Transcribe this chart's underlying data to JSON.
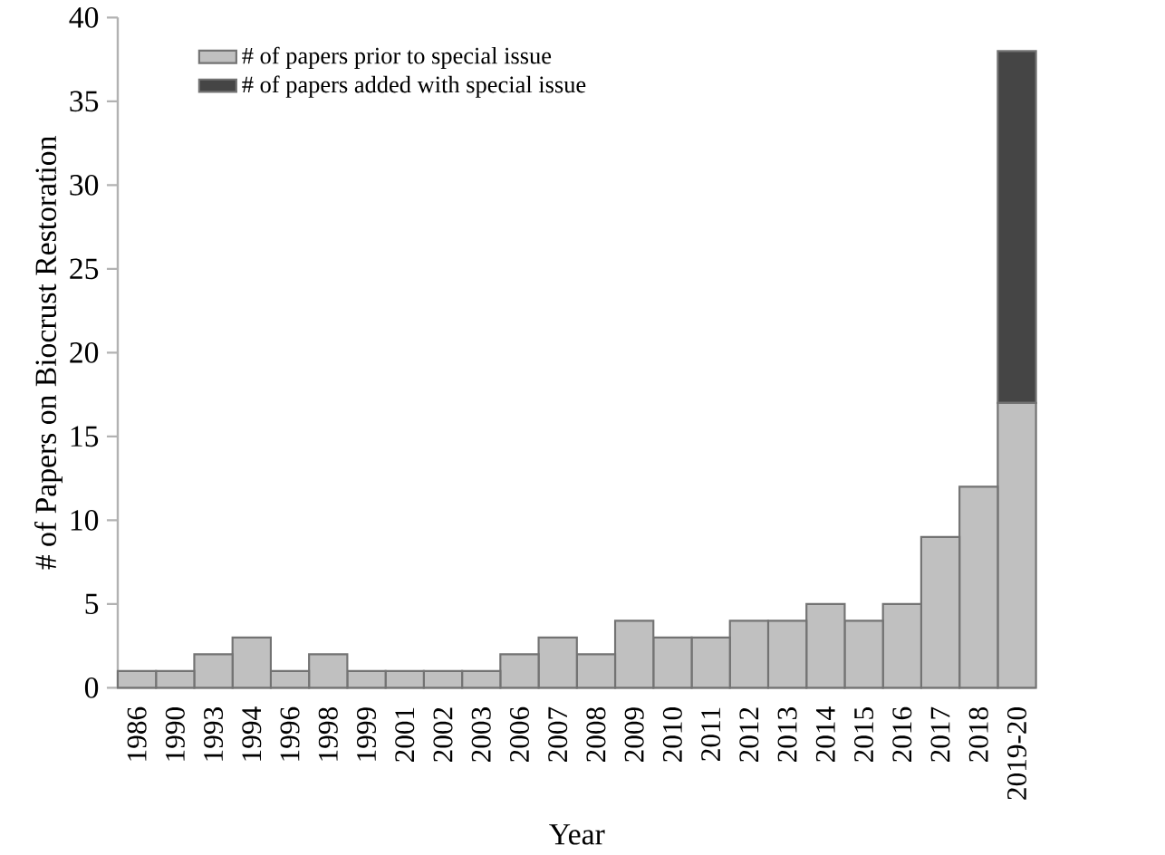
{
  "chart_data": {
    "type": "bar",
    "stacked": true,
    "xlabel": "Year",
    "ylabel": "# of Papers on Biocrust Restoration",
    "categories": [
      "1986",
      "1990",
      "1993",
      "1994",
      "1996",
      "1998",
      "1999",
      "2001",
      "2002",
      "2003",
      "2006",
      "2007",
      "2008",
      "2009",
      "2010",
      "2011",
      "2012",
      "2013",
      "2014",
      "2015",
      "2016",
      "2017",
      "2018",
      "2019-20"
    ],
    "series": [
      {
        "name": "# of papers prior to special issue",
        "color": "#c0c0c0",
        "values": [
          1,
          1,
          2,
          3,
          1,
          2,
          1,
          1,
          1,
          1,
          2,
          3,
          2,
          4,
          3,
          3,
          4,
          4,
          5,
          4,
          5,
          9,
          12,
          17
        ]
      },
      {
        "name": "# of papers added with special issue",
        "color": "#454545",
        "values": [
          null,
          null,
          null,
          null,
          null,
          null,
          null,
          null,
          null,
          null,
          null,
          null,
          null,
          null,
          null,
          null,
          null,
          null,
          null,
          null,
          null,
          null,
          null,
          21
        ]
      }
    ],
    "ylim": [
      0,
      40
    ],
    "yticks": [
      0,
      5,
      10,
      15,
      20,
      25,
      30,
      35,
      40
    ],
    "grid": false,
    "legend": "top left"
  }
}
